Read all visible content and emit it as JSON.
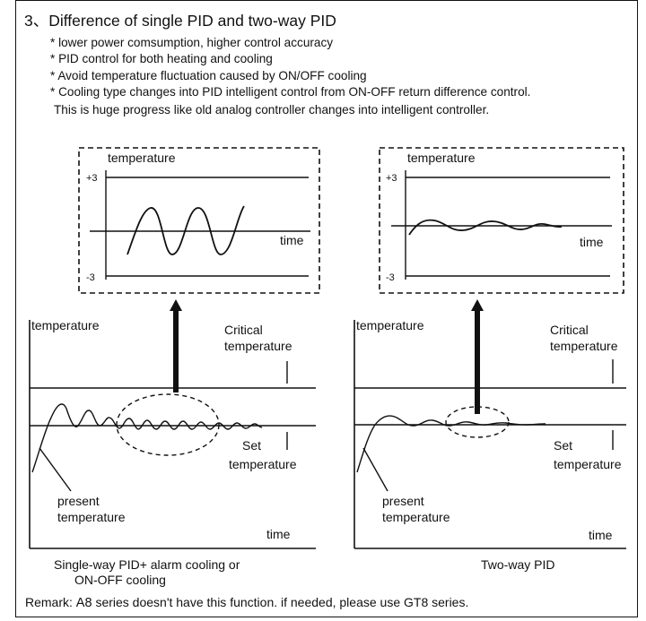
{
  "section_title": "3、Difference of single PID and two-way PID",
  "bullets": [
    "* lower power comsumption, higher control accuracy",
    "* PID control for both heating and cooling",
    "* Avoid temperature fluctuation caused by ON/OFF cooling",
    "* Cooling type changes into PID intelligent control from ON-OFF return difference control.",
    "This  is huge progress like old analog controller changes into intelligent controller."
  ],
  "left_diagram": {
    "zoom_ylabel": "temperature",
    "zoom_plus": "+3",
    "zoom_minus": "-3",
    "zoom_xlabel": "time",
    "ylabel": "temperature",
    "critical_line1": "Critical",
    "critical_line2": "temperature",
    "set_line1": "Set",
    "set_line2": "temperature",
    "present_line1": "present",
    "present_line2": "temperature",
    "xlabel": "time",
    "caption_line1": "Single-way PID+ alarm cooling or",
    "caption_line2": "ON-OFF cooling"
  },
  "right_diagram": {
    "zoom_ylabel": "temperature",
    "zoom_plus": "+3",
    "zoom_minus": "-3",
    "zoom_xlabel": "time",
    "ylabel": "temperature",
    "critical_line1": "Critical",
    "critical_line2": "temperature",
    "set_line1": "Set",
    "set_line2": "temperature",
    "present_line1": "present",
    "present_line2": "temperature",
    "xlabel": "time",
    "caption": "Two-way PID"
  },
  "remark": {
    "prefix": "Remark:",
    "model": "A8",
    "text": "series doesn't have this function. if needed, please use GT8 series."
  }
}
